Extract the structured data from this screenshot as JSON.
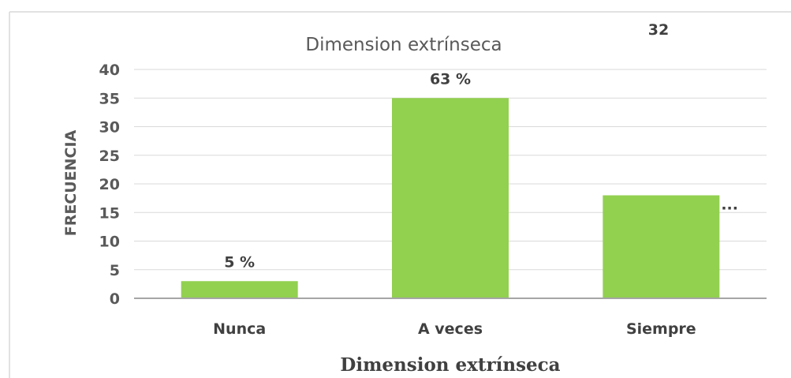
{
  "chart_data": {
    "type": "bar",
    "title": "Dimension extrínseca",
    "xlabel": "Dimension extrínseca",
    "ylabel": "FRECUENCIA",
    "categories": [
      "Nunca",
      "A veces",
      "Siempre"
    ],
    "values": [
      3,
      35,
      18
    ],
    "data_labels": [
      "5 %",
      "63 %",
      "..."
    ],
    "ylim": [
      0,
      40
    ],
    "yticks": [
      0,
      5,
      10,
      15,
      20,
      25,
      30,
      35,
      40
    ],
    "grid": true,
    "legend": "none",
    "annotation": "32",
    "colors": {
      "bar": "#92d050",
      "grid": "#d9d9d9",
      "axis": "#a6a6a6",
      "border": "#d0d0d0"
    }
  }
}
